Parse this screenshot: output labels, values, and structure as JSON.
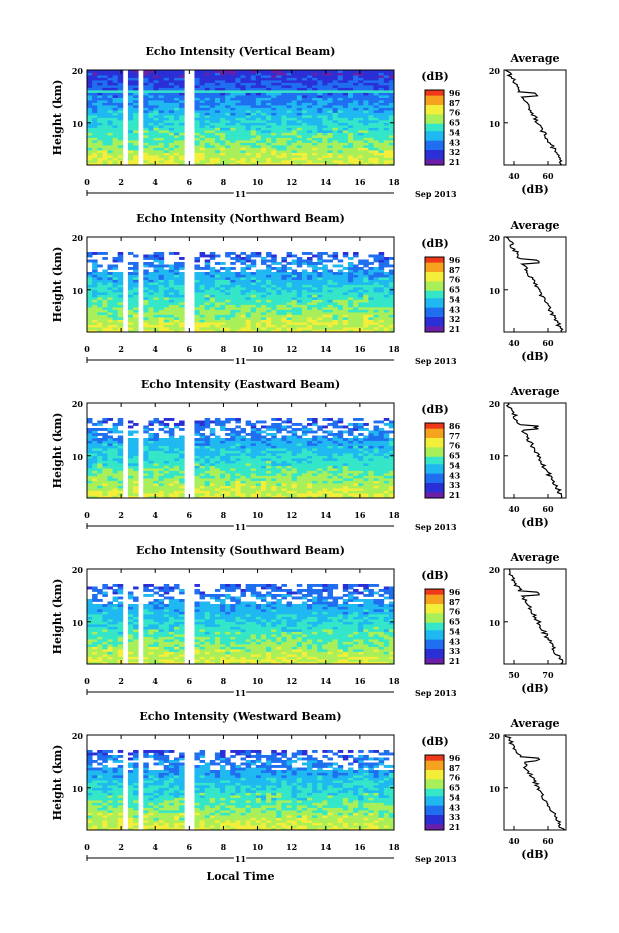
{
  "colors": [
    "#6b1fa8",
    "#2a2fd6",
    "#1f6ff0",
    "#20b8f0",
    "#35e6c8",
    "#a8ef5a",
    "#f2ee3a",
    "#f6a21e",
    "#ee3a1a"
  ],
  "chart_data": [
    {
      "type": "heatmap",
      "title": "Echo Intensity (Vertical Beam)",
      "ylabel": "Height (km)",
      "x_ticks": [
        "0",
        "2",
        "4",
        "6",
        "8",
        "10",
        "12",
        "14",
        "16",
        "18"
      ],
      "xlim": [
        0,
        18
      ],
      "y_ticks": [
        "20",
        "10"
      ],
      "ylim": [
        2,
        20
      ],
      "date_day": "11",
      "date_month": "Sep 2013",
      "colorbar_unit": "(dB)",
      "colorbar_ticks": [
        "96",
        "87",
        "76",
        "65",
        "54",
        "43",
        "32",
        "21"
      ],
      "profile": {
        "title": "Average",
        "xlabel": "(dB)",
        "x_ticks": [
          "40",
          "60"
        ],
        "y_ticks": [
          "20",
          "10"
        ]
      }
    },
    {
      "type": "heatmap",
      "title": "Echo Intensity (Northward Beam)",
      "ylabel": "Height (km)",
      "x_ticks": [
        "0",
        "2",
        "4",
        "6",
        "8",
        "10",
        "12",
        "14",
        "16",
        "18"
      ],
      "xlim": [
        0,
        18
      ],
      "y_ticks": [
        "20",
        "10"
      ],
      "ylim": [
        2,
        20
      ],
      "date_day": "11",
      "date_month": "Sep 2013",
      "colorbar_unit": "(dB)",
      "colorbar_ticks": [
        "96",
        "87",
        "76",
        "65",
        "54",
        "43",
        "32",
        "21"
      ],
      "profile": {
        "title": "Average",
        "xlabel": "(dB)",
        "x_ticks": [
          "40",
          "60"
        ],
        "y_ticks": [
          "20",
          "10"
        ]
      }
    },
    {
      "type": "heatmap",
      "title": "Echo Intensity (Eastward Beam)",
      "ylabel": "Height (km)",
      "x_ticks": [
        "0",
        "2",
        "4",
        "6",
        "8",
        "10",
        "12",
        "14",
        "16",
        "18"
      ],
      "xlim": [
        0,
        18
      ],
      "y_ticks": [
        "20",
        "10"
      ],
      "ylim": [
        2,
        20
      ],
      "date_day": "11",
      "date_month": "Sep 2013",
      "colorbar_unit": "(dB)",
      "colorbar_ticks": [
        "86",
        "77",
        "76",
        "65",
        "54",
        "43",
        "33",
        "21"
      ],
      "profile": {
        "title": "Average",
        "xlabel": "(dB)",
        "x_ticks": [
          "40",
          "60"
        ],
        "y_ticks": [
          "20",
          "10"
        ]
      }
    },
    {
      "type": "heatmap",
      "title": "Echo Intensity (Southward Beam)",
      "ylabel": "Height (km)",
      "x_ticks": [
        "0",
        "2",
        "4",
        "6",
        "8",
        "10",
        "12",
        "14",
        "16",
        "18"
      ],
      "xlim": [
        0,
        18
      ],
      "y_ticks": [
        "20",
        "10"
      ],
      "ylim": [
        2,
        20
      ],
      "date_day": "11",
      "date_month": "Sep 2013",
      "colorbar_unit": "(dB)",
      "colorbar_ticks": [
        "96",
        "87",
        "76",
        "65",
        "54",
        "43",
        "33",
        "21"
      ],
      "profile": {
        "title": "Average",
        "xlabel": "(dB)",
        "x_ticks": [
          "50",
          "70"
        ],
        "y_ticks": [
          "20",
          "10"
        ]
      }
    },
    {
      "type": "heatmap",
      "title": "Echo Intensity (Westward Beam)",
      "ylabel": "Height (km)",
      "x_ticks": [
        "0",
        "2",
        "4",
        "6",
        "8",
        "10",
        "12",
        "14",
        "16",
        "18"
      ],
      "xlim": [
        0,
        18
      ],
      "y_ticks": [
        "20",
        "10"
      ],
      "ylim": [
        2,
        20
      ],
      "date_day": "11",
      "date_month": "Sep 2013",
      "colorbar_unit": "(dB)",
      "colorbar_ticks": [
        "96",
        "87",
        "76",
        "65",
        "54",
        "43",
        "33",
        "21"
      ],
      "profile": {
        "title": "Average",
        "xlabel": "(dB)",
        "x_ticks": [
          "40",
          "60"
        ],
        "y_ticks": [
          "20",
          "10"
        ]
      }
    }
  ],
  "footer": {
    "xlabel": "Local Time"
  }
}
